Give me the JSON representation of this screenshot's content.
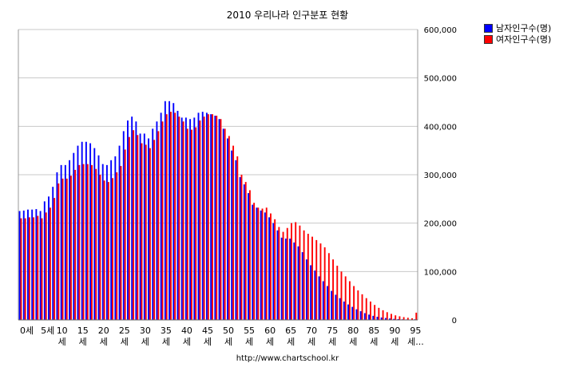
{
  "chart_data": {
    "type": "bar",
    "title": "2010 우리나라 인구분포 현황",
    "source": "http://www.chartschool.kr",
    "ylim": [
      0,
      600000
    ],
    "y_ticks": [
      "0",
      "100,000",
      "200,000",
      "300,000",
      "400,000",
      "500,000",
      "600,000"
    ],
    "grid": true,
    "legend_position": "top-right",
    "x_tick_labels": [
      {
        "index": 0,
        "text": "0세"
      },
      {
        "index": 5,
        "text": "5세"
      },
      {
        "index": 10,
        "text": "10\n세"
      },
      {
        "index": 15,
        "text": "15\n세"
      },
      {
        "index": 20,
        "text": "20\n세"
      },
      {
        "index": 25,
        "text": "25\n세"
      },
      {
        "index": 30,
        "text": "30\n세"
      },
      {
        "index": 35,
        "text": "35\n세"
      },
      {
        "index": 40,
        "text": "40\n세"
      },
      {
        "index": 45,
        "text": "45\n세"
      },
      {
        "index": 50,
        "text": "50\n세"
      },
      {
        "index": 55,
        "text": "55\n세"
      },
      {
        "index": 60,
        "text": "60\n세"
      },
      {
        "index": 65,
        "text": "65\n세"
      },
      {
        "index": 70,
        "text": "70\n세"
      },
      {
        "index": 75,
        "text": "75\n세"
      },
      {
        "index": 80,
        "text": "80\n세"
      },
      {
        "index": 85,
        "text": "85\n세"
      },
      {
        "index": 90,
        "text": "90\n세"
      },
      {
        "index": 95,
        "text": "95\n세..."
      }
    ],
    "series": [
      {
        "name": "남자인구수(명)",
        "color": "#0000ff",
        "values": [
          225000,
          226000,
          228000,
          228000,
          229000,
          225000,
          245000,
          255000,
          275000,
          305000,
          320000,
          320000,
          330000,
          345000,
          360000,
          368000,
          368000,
          365000,
          355000,
          340000,
          322000,
          320000,
          330000,
          338000,
          360000,
          390000,
          412000,
          420000,
          410000,
          385000,
          385000,
          375000,
          395000,
          410000,
          428000,
          452000,
          452000,
          448000,
          432000,
          418000,
          418000,
          415000,
          418000,
          428000,
          430000,
          428000,
          425000,
          422000,
          415000,
          395000,
          375000,
          350000,
          330000,
          295000,
          280000,
          262000,
          238000,
          232000,
          226000,
          222000,
          212000,
          200000,
          185000,
          170000,
          168000,
          168000,
          160000,
          152000,
          140000,
          125000,
          113000,
          102000,
          90000,
          80000,
          70000,
          60000,
          52000,
          45000,
          38000,
          32000,
          27000,
          22000,
          18000,
          14000,
          11000,
          8500,
          6500,
          5000,
          4000,
          3000,
          2200,
          1700,
          1300,
          1000,
          800,
          1300
        ]
      },
      {
        "name": "여자인구수(명)",
        "color": "#ff0000",
        "values": [
          210000,
          210000,
          212000,
          212000,
          215000,
          210000,
          222000,
          232000,
          252000,
          282000,
          292000,
          292000,
          298000,
          310000,
          320000,
          322000,
          322000,
          320000,
          312000,
          300000,
          288000,
          285000,
          293000,
          305000,
          318000,
          352000,
          378000,
          392000,
          382000,
          365000,
          362000,
          355000,
          372000,
          390000,
          410000,
          425000,
          430000,
          428000,
          420000,
          410000,
          395000,
          393000,
          398000,
          412000,
          420000,
          425000,
          425000,
          422000,
          415000,
          395000,
          380000,
          360000,
          338000,
          300000,
          285000,
          268000,
          242000,
          232000,
          230000,
          232000,
          220000,
          208000,
          192000,
          182000,
          190000,
          200000,
          202000,
          195000,
          185000,
          178000,
          172000,
          165000,
          158000,
          150000,
          138000,
          125000,
          112000,
          100000,
          90000,
          80000,
          70000,
          61000,
          53000,
          45000,
          38000,
          31000,
          25000,
          20000,
          16000,
          12500,
          9500,
          7500,
          5800,
          4500,
          3500,
          15000
        ]
      }
    ]
  }
}
